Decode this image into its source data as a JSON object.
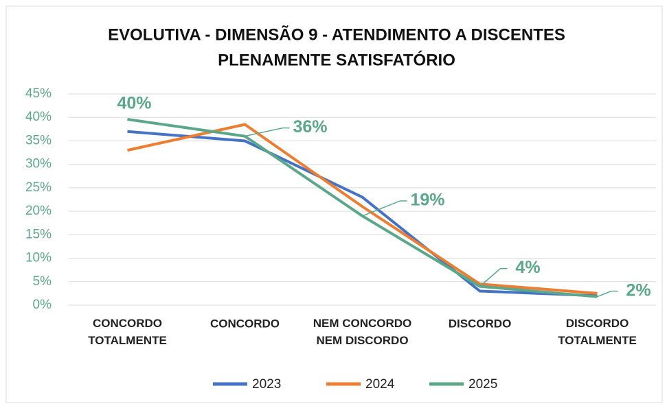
{
  "chart_data": {
    "type": "line",
    "title": "EVOLUTIVA - DIMENSÃO 9 - ATENDIMENTO A DISCENTES",
    "subtitle": "PLENAMENTE SATISFATÓRIO",
    "categories": [
      "CONCORDO\nTOTALMENTE",
      "CONCORDO",
      "NEM CONCORDO\nNEM DISCORDO",
      "DISCORDO",
      "DISCORDO\nTOTALMENTE"
    ],
    "series": [
      {
        "name": "2023",
        "color": "#4472c4",
        "values": [
          37,
          35,
          23,
          3,
          2
        ]
      },
      {
        "name": "2024",
        "color": "#ed7d31",
        "values": [
          33,
          38.5,
          21,
          4.5,
          2.5
        ]
      },
      {
        "name": "2025",
        "color": "#5aa889",
        "values": [
          39.6,
          36,
          19,
          4,
          1.8
        ],
        "value_labels": [
          "40%",
          "36%",
          "19%",
          "4%",
          "2%"
        ]
      }
    ],
    "ylim": [
      0,
      45
    ],
    "yticks": [
      {
        "value": 0,
        "label": "0%"
      },
      {
        "value": 5,
        "label": "5%"
      },
      {
        "value": 10,
        "label": "10%"
      },
      {
        "value": 15,
        "label": "15%"
      },
      {
        "value": 20,
        "label": "20%"
      },
      {
        "value": 25,
        "label": "25%"
      },
      {
        "value": 30,
        "label": "30%"
      },
      {
        "value": 35,
        "label": "35%"
      },
      {
        "value": 40,
        "label": "40%"
      },
      {
        "value": 45,
        "label": "45%"
      }
    ],
    "grid": true,
    "legend": "bottom"
  }
}
